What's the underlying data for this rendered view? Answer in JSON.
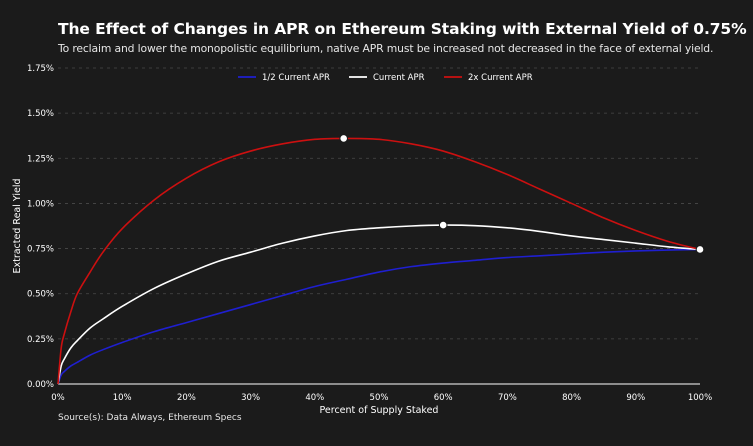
{
  "title": "The Effect of Changes in APR on Ethereum Staking with External Yield of 0.75%",
  "subtitle": "To reclaim and lower the monopolistic equilibrium, native APR must be increased not decreased in the face of external yield.",
  "source": "Source(s): Data Always, Ethereum Specs",
  "chart_data": {
    "type": "line",
    "title": "The Effect of Changes in APR on Ethereum Staking with External Yield of 0.75%",
    "subtitle": "To reclaim and lower the monopolistic equilibrium, native APR must be increased not decreased in the face of external yield.",
    "xlabel": "Percent of Supply Staked",
    "ylabel": "Extracted Real Yield",
    "xlim": [
      0,
      100
    ],
    "ylim": [
      0,
      1.75
    ],
    "x_ticks": [
      "0%",
      "10%",
      "20%",
      "30%",
      "40%",
      "50%",
      "60%",
      "70%",
      "80%",
      "90%",
      "100%"
    ],
    "y_ticks": [
      "0.00%",
      "0.25%",
      "0.50%",
      "0.75%",
      "1.00%",
      "1.25%",
      "1.50%",
      "1.75%"
    ],
    "grid": "horizontal dashed",
    "legend_position": "top-center",
    "x": [
      0,
      0.5,
      1,
      2,
      3,
      5,
      7,
      10,
      15,
      20,
      25,
      30,
      35,
      40,
      45,
      50,
      55,
      60,
      65,
      70,
      75,
      80,
      85,
      90,
      95,
      100
    ],
    "series": [
      {
        "name": "1/2 Current APR",
        "color": "#1f1fd0",
        "values": [
          0,
          0.05,
          0.07,
          0.1,
          0.12,
          0.16,
          0.19,
          0.23,
          0.29,
          0.34,
          0.39,
          0.44,
          0.49,
          0.54,
          0.58,
          0.62,
          0.65,
          0.67,
          0.685,
          0.7,
          0.71,
          0.72,
          0.73,
          0.737,
          0.742,
          0.745
        ]
      },
      {
        "name": "Current APR",
        "color": "#ffffff",
        "values": [
          0,
          0.1,
          0.14,
          0.2,
          0.24,
          0.31,
          0.36,
          0.43,
          0.53,
          0.61,
          0.68,
          0.73,
          0.78,
          0.82,
          0.85,
          0.865,
          0.875,
          0.88,
          0.877,
          0.865,
          0.845,
          0.82,
          0.8,
          0.78,
          0.76,
          0.745
        ]
      },
      {
        "name": "2x Current APR",
        "color": "#cc1010",
        "values": [
          0,
          0.2,
          0.28,
          0.4,
          0.5,
          0.62,
          0.73,
          0.86,
          1.02,
          1.14,
          1.23,
          1.29,
          1.33,
          1.355,
          1.36,
          1.355,
          1.33,
          1.29,
          1.23,
          1.16,
          1.08,
          1.0,
          0.92,
          0.85,
          0.79,
          0.745
        ]
      }
    ],
    "markers": [
      {
        "series": "Current APR",
        "x": 60,
        "y": 0.88
      },
      {
        "series": "2x Current APR",
        "x": 44.5,
        "y": 1.36
      },
      {
        "series": "all",
        "x": 100,
        "y": 0.745
      }
    ]
  }
}
